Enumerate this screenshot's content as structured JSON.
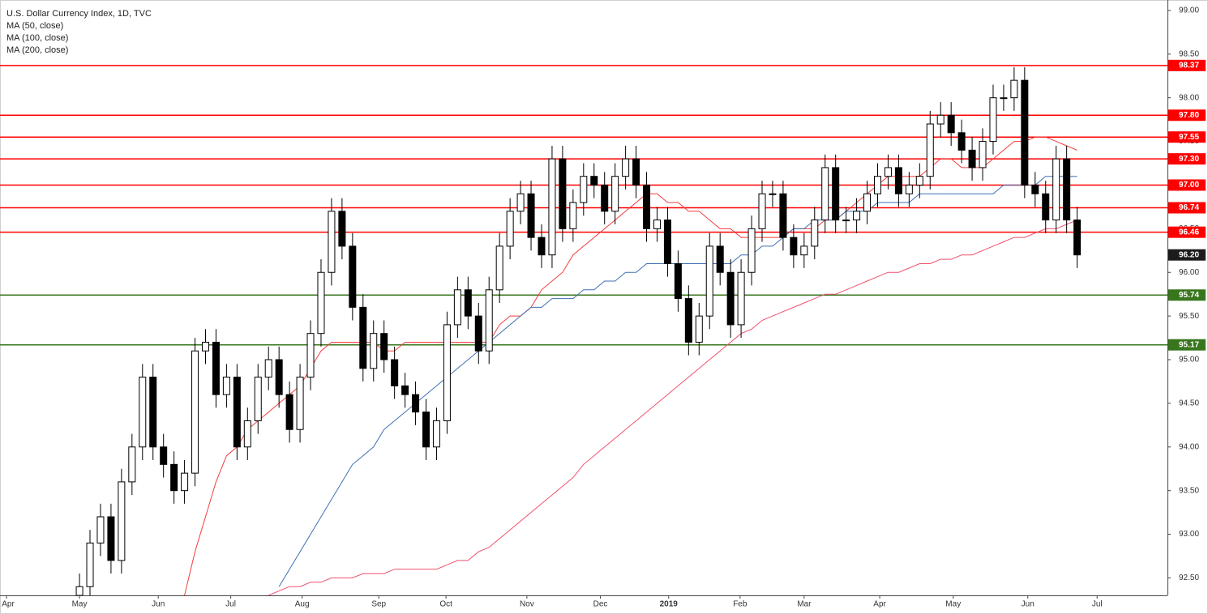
{
  "chart_data": {
    "type": "candlestick",
    "title": "U.S. Dollar Currency Index, 1D, TVC",
    "open": [
      92.3,
      92.4,
      92.9,
      93.2,
      92.7,
      93.6,
      94.0,
      94.8,
      94.0,
      93.8,
      93.5,
      93.7,
      95.1,
      95.2,
      94.6,
      94.8,
      94.0,
      94.3,
      94.8,
      95.0,
      94.6,
      94.2,
      94.8,
      95.3,
      96.0,
      96.7,
      96.3,
      95.6,
      94.9,
      95.3,
      95.0,
      94.7,
      94.6,
      94.4,
      94.0,
      94.3,
      95.4,
      95.8,
      95.5,
      95.1,
      95.8,
      96.3,
      96.7,
      96.9,
      96.4,
      96.2,
      97.3,
      96.5,
      96.8,
      97.1,
      97.0,
      96.7,
      97.1,
      97.3,
      97.0,
      96.5,
      96.6,
      96.1,
      95.7,
      95.2,
      95.5,
      96.3,
      96.0,
      95.4,
      96.0,
      96.5,
      96.9,
      96.9,
      96.4,
      96.2,
      96.3,
      96.6,
      97.2,
      96.6,
      96.6,
      96.7,
      96.9,
      97.1,
      97.2,
      96.9,
      97.0,
      97.1,
      97.7,
      97.8,
      97.6,
      97.4,
      97.2,
      97.5,
      98.0,
      98.0,
      98.2,
      97.0,
      96.9,
      96.6,
      97.3,
      96.6
    ],
    "high": [
      92.55,
      93.05,
      93.35,
      93.35,
      93.75,
      94.15,
      94.95,
      94.95,
      94.15,
      93.95,
      93.85,
      95.25,
      95.35,
      95.35,
      94.95,
      94.95,
      94.45,
      94.95,
      95.15,
      95.15,
      94.75,
      94.95,
      95.45,
      96.15,
      96.85,
      96.85,
      96.45,
      95.75,
      95.45,
      95.45,
      95.15,
      94.85,
      94.75,
      94.55,
      94.45,
      95.55,
      95.95,
      95.95,
      95.65,
      95.95,
      96.45,
      96.85,
      97.05,
      97.05,
      96.55,
      97.45,
      97.45,
      96.95,
      97.25,
      97.25,
      97.15,
      97.25,
      97.45,
      97.45,
      97.15,
      96.75,
      96.75,
      96.25,
      95.85,
      95.65,
      96.45,
      96.45,
      96.15,
      96.15,
      96.65,
      97.05,
      97.05,
      97.05,
      96.55,
      96.45,
      96.75,
      97.35,
      97.35,
      96.75,
      96.85,
      97.05,
      97.25,
      97.35,
      97.35,
      97.15,
      97.25,
      97.85,
      97.95,
      97.95,
      97.75,
      97.55,
      97.65,
      98.15,
      98.15,
      98.35,
      98.35,
      97.15,
      97.05,
      97.45,
      97.45,
      96.75
    ],
    "low": [
      92.15,
      92.25,
      92.75,
      92.55,
      92.55,
      93.45,
      93.85,
      93.85,
      93.65,
      93.35,
      93.35,
      93.55,
      94.95,
      94.45,
      94.45,
      93.85,
      93.85,
      94.15,
      94.65,
      94.45,
      94.05,
      94.05,
      94.65,
      95.15,
      95.85,
      96.15,
      95.45,
      94.75,
      94.75,
      94.85,
      94.55,
      94.45,
      94.25,
      93.85,
      93.85,
      94.15,
      95.25,
      95.35,
      94.95,
      94.95,
      95.65,
      96.15,
      96.55,
      96.25,
      96.05,
      96.05,
      96.35,
      96.35,
      96.65,
      96.85,
      96.55,
      96.55,
      96.95,
      96.85,
      96.35,
      96.35,
      95.95,
      95.55,
      95.05,
      95.05,
      95.35,
      95.85,
      95.25,
      95.25,
      95.85,
      96.35,
      96.75,
      96.25,
      96.05,
      96.05,
      96.15,
      96.45,
      96.45,
      96.45,
      96.45,
      96.55,
      96.75,
      96.95,
      96.75,
      96.75,
      96.85,
      96.95,
      97.55,
      97.45,
      97.25,
      97.05,
      97.05,
      97.35,
      97.85,
      97.85,
      96.85,
      96.75,
      96.45,
      96.45,
      96.45,
      96.05
    ],
    "close": [
      92.4,
      92.9,
      93.2,
      92.7,
      93.6,
      94.0,
      94.8,
      94.0,
      93.8,
      93.5,
      93.7,
      95.1,
      95.2,
      94.6,
      94.8,
      94.0,
      94.3,
      94.8,
      95.0,
      94.6,
      94.2,
      94.8,
      95.3,
      96.0,
      96.7,
      96.3,
      95.6,
      94.9,
      95.3,
      95.0,
      94.7,
      94.6,
      94.4,
      94.0,
      94.3,
      95.4,
      95.8,
      95.5,
      95.1,
      95.8,
      96.3,
      96.7,
      96.9,
      96.4,
      96.2,
      97.3,
      96.5,
      96.8,
      97.1,
      97.0,
      96.7,
      97.1,
      97.3,
      97.0,
      96.5,
      96.6,
      96.1,
      95.7,
      95.2,
      95.5,
      96.3,
      96.0,
      95.4,
      96.0,
      96.5,
      96.9,
      96.9,
      96.4,
      96.2,
      96.3,
      96.6,
      97.2,
      96.6,
      96.6,
      96.7,
      96.9,
      97.1,
      97.2,
      96.9,
      97.0,
      97.1,
      97.7,
      97.8,
      97.6,
      97.4,
      97.2,
      97.5,
      98.0,
      98.0,
      98.2,
      97.0,
      96.9,
      96.6,
      97.3,
      96.6,
      96.2
    ],
    "series": [
      {
        "name": "MA (50, close)",
        "color": "#f23c3c",
        "values": [
          null,
          null,
          null,
          null,
          null,
          null,
          null,
          null,
          null,
          null,
          92.3,
          92.8,
          93.2,
          93.6,
          93.9,
          94.0,
          94.2,
          94.3,
          94.4,
          94.5,
          94.6,
          94.7,
          94.9,
          95.1,
          95.2,
          95.2,
          95.2,
          95.2,
          95.2,
          95.1,
          95.1,
          95.2,
          95.2,
          95.2,
          95.2,
          95.2,
          95.2,
          95.2,
          95.2,
          95.2,
          95.4,
          95.5,
          95.5,
          95.6,
          95.8,
          95.9,
          96.0,
          96.2,
          96.3,
          96.4,
          96.5,
          96.6,
          96.7,
          96.8,
          96.9,
          96.9,
          96.8,
          96.8,
          96.7,
          96.7,
          96.6,
          96.5,
          96.5,
          96.4,
          96.4,
          96.4,
          96.4,
          96.4,
          96.5,
          96.5,
          96.5,
          96.6,
          96.6,
          96.7,
          96.8,
          96.9,
          97.0,
          97.1,
          97.1,
          97.1,
          97.1,
          97.2,
          97.3,
          97.3,
          97.2,
          97.2,
          97.2,
          97.3,
          97.4,
          97.5,
          97.5,
          97.55,
          97.55,
          97.5,
          97.45,
          97.4
        ]
      },
      {
        "name": "MA (100, close)",
        "color": "#3f6fb5",
        "values": [
          null,
          null,
          null,
          null,
          null,
          null,
          null,
          null,
          null,
          null,
          null,
          null,
          null,
          null,
          null,
          null,
          null,
          null,
          null,
          92.4,
          92.6,
          92.8,
          93.0,
          93.2,
          93.4,
          93.6,
          93.8,
          93.9,
          94.0,
          94.2,
          94.3,
          94.4,
          94.5,
          94.6,
          94.7,
          94.8,
          94.9,
          95.0,
          95.1,
          95.2,
          95.3,
          95.4,
          95.5,
          95.6,
          95.6,
          95.7,
          95.7,
          95.7,
          95.8,
          95.8,
          95.9,
          95.9,
          96.0,
          96.0,
          96.1,
          96.1,
          96.1,
          96.1,
          96.1,
          96.1,
          96.1,
          96.1,
          96.1,
          96.2,
          96.2,
          96.3,
          96.3,
          96.4,
          96.5,
          96.5,
          96.6,
          96.6,
          96.6,
          96.7,
          96.7,
          96.7,
          96.8,
          96.8,
          96.8,
          96.8,
          96.9,
          96.9,
          96.9,
          96.9,
          96.9,
          96.9,
          96.9,
          96.9,
          97.0,
          97.0,
          97.0,
          97.0,
          97.1,
          97.1,
          97.1,
          97.1
        ]
      },
      {
        "name": "MA (200, close)",
        "color": "#f0506e",
        "values": [
          null,
          null,
          null,
          null,
          null,
          null,
          null,
          null,
          null,
          null,
          null,
          null,
          null,
          null,
          null,
          null,
          null,
          null,
          92.3,
          92.35,
          92.4,
          92.4,
          92.45,
          92.45,
          92.5,
          92.5,
          92.5,
          92.55,
          92.55,
          92.55,
          92.6,
          92.6,
          92.6,
          92.6,
          92.6,
          92.65,
          92.7,
          92.7,
          92.8,
          92.85,
          92.95,
          93.05,
          93.15,
          93.25,
          93.35,
          93.45,
          93.55,
          93.65,
          93.8,
          93.9,
          94.0,
          94.1,
          94.2,
          94.3,
          94.4,
          94.5,
          94.6,
          94.7,
          94.8,
          94.9,
          95.0,
          95.1,
          95.2,
          95.3,
          95.35,
          95.45,
          95.5,
          95.55,
          95.6,
          95.65,
          95.7,
          95.75,
          95.75,
          95.8,
          95.85,
          95.9,
          95.95,
          96.0,
          96.0,
          96.05,
          96.1,
          96.1,
          96.15,
          96.15,
          96.2,
          96.2,
          96.25,
          96.3,
          96.35,
          96.4,
          96.4,
          96.45,
          96.5,
          96.5,
          96.55,
          96.6
        ]
      }
    ],
    "levels": [
      {
        "value": 98.37,
        "label": "98.37",
        "color": "#ff0000"
      },
      {
        "value": 97.8,
        "label": "97.80",
        "color": "#ff0000"
      },
      {
        "value": 97.55,
        "label": "97.55",
        "color": "#ff0000"
      },
      {
        "value": 97.3,
        "label": "97.30",
        "color": "#ff0000"
      },
      {
        "value": 97.0,
        "label": "97.00",
        "color": "#ff0000"
      },
      {
        "value": 96.74,
        "label": "96.74",
        "color": "#ff0000"
      },
      {
        "value": 96.46,
        "label": "96.46",
        "color": "#ff0000"
      },
      {
        "value": 95.74,
        "label": "95.74",
        "color": "#38761d"
      },
      {
        "value": 95.17,
        "label": "95.17",
        "color": "#38761d"
      }
    ],
    "last_price": {
      "value": 96.2,
      "label": "96.20"
    },
    "xlim": [
      -7.57,
      103.6
    ],
    "xticks": [
      {
        "value": -6.95,
        "label": "Apr"
      },
      {
        "value": 0,
        "label": "May"
      },
      {
        "value": 7.5,
        "label": "Jun"
      },
      {
        "value": 14.4,
        "label": "Jul"
      },
      {
        "value": 21.2,
        "label": "Aug"
      },
      {
        "value": 28.5,
        "label": "Sep"
      },
      {
        "value": 34.9,
        "label": "Oct"
      },
      {
        "value": 42.6,
        "label": "Nov"
      },
      {
        "value": 49.6,
        "label": "Dec"
      },
      {
        "value": 56.1,
        "label": "2019"
      },
      {
        "value": 62.9,
        "label": "Feb"
      },
      {
        "value": 69.0,
        "label": "Mar"
      },
      {
        "value": 76.2,
        "label": "Apr"
      },
      {
        "value": 83.2,
        "label": "May"
      },
      {
        "value": 90.3,
        "label": "Jun"
      },
      {
        "value": 96.9,
        "label": "Jul"
      }
    ],
    "ylim": [
      92.3,
      99.12
    ],
    "yticks": [
      {
        "value": 92.5,
        "label": "92.50"
      },
      {
        "value": 93,
        "label": "93.00"
      },
      {
        "value": 93.5,
        "label": "93.50"
      },
      {
        "value": 94,
        "label": "94.00"
      },
      {
        "value": 94.5,
        "label": "94.50"
      },
      {
        "value": 95,
        "label": "95.00"
      },
      {
        "value": 95.5,
        "label": "95.50"
      },
      {
        "value": 96,
        "label": "96.00"
      },
      {
        "value": 96.5,
        "label": "96.50"
      },
      {
        "value": 97,
        "label": "97.00"
      },
      {
        "value": 97.5,
        "label": "97.50"
      },
      {
        "value": 98,
        "label": "98.00"
      },
      {
        "value": 98.5,
        "label": "98.50"
      },
      {
        "value": 99,
        "label": "99.00"
      }
    ],
    "grid": false,
    "up_color": "#ffffff",
    "down_color": "#000000"
  }
}
